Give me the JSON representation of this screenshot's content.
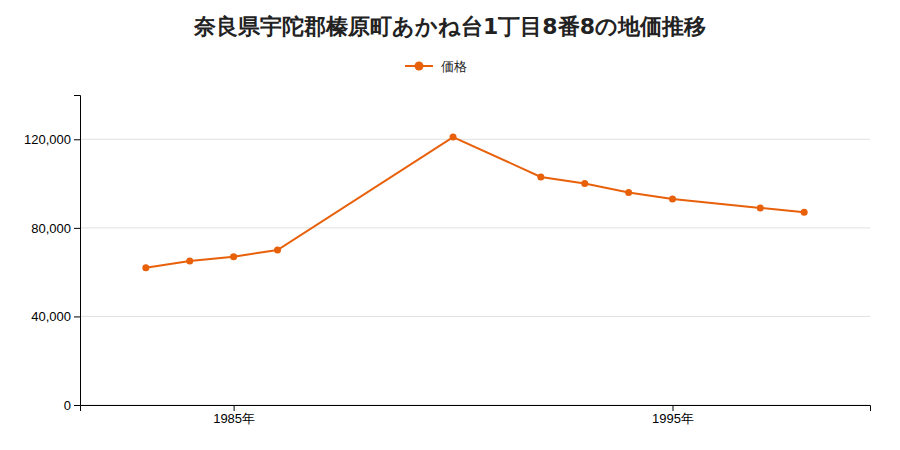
{
  "chart_data": {
    "type": "line",
    "title": "奈良県宇陀郡榛原町あかね台1丁目8番8の地価推移",
    "x": [
      1983,
      1984,
      1985,
      1986,
      1990,
      1992,
      1993,
      1994,
      1995,
      1997,
      1998
    ],
    "series": [
      {
        "name": "価格",
        "color": "#E8600A",
        "marker": "circle",
        "values": [
          62000,
          65000,
          67000,
          70000,
          121000,
          103000,
          100000,
          96000,
          93000,
          89000,
          87000
        ]
      }
    ],
    "xlim": [
      1981.5,
      1999.5
    ],
    "xticks": [
      {
        "value": 1985,
        "label": "1985年"
      },
      {
        "value": 1995,
        "label": "1995年"
      }
    ],
    "ylim": [
      0,
      140000
    ],
    "yticks": [
      0,
      {
        "value": 40000,
        "label": "40,000"
      },
      {
        "value": 80000,
        "label": "80,000"
      },
      {
        "value": 120000,
        "label": "120,000"
      }
    ],
    "grid": true,
    "legend": "top"
  }
}
